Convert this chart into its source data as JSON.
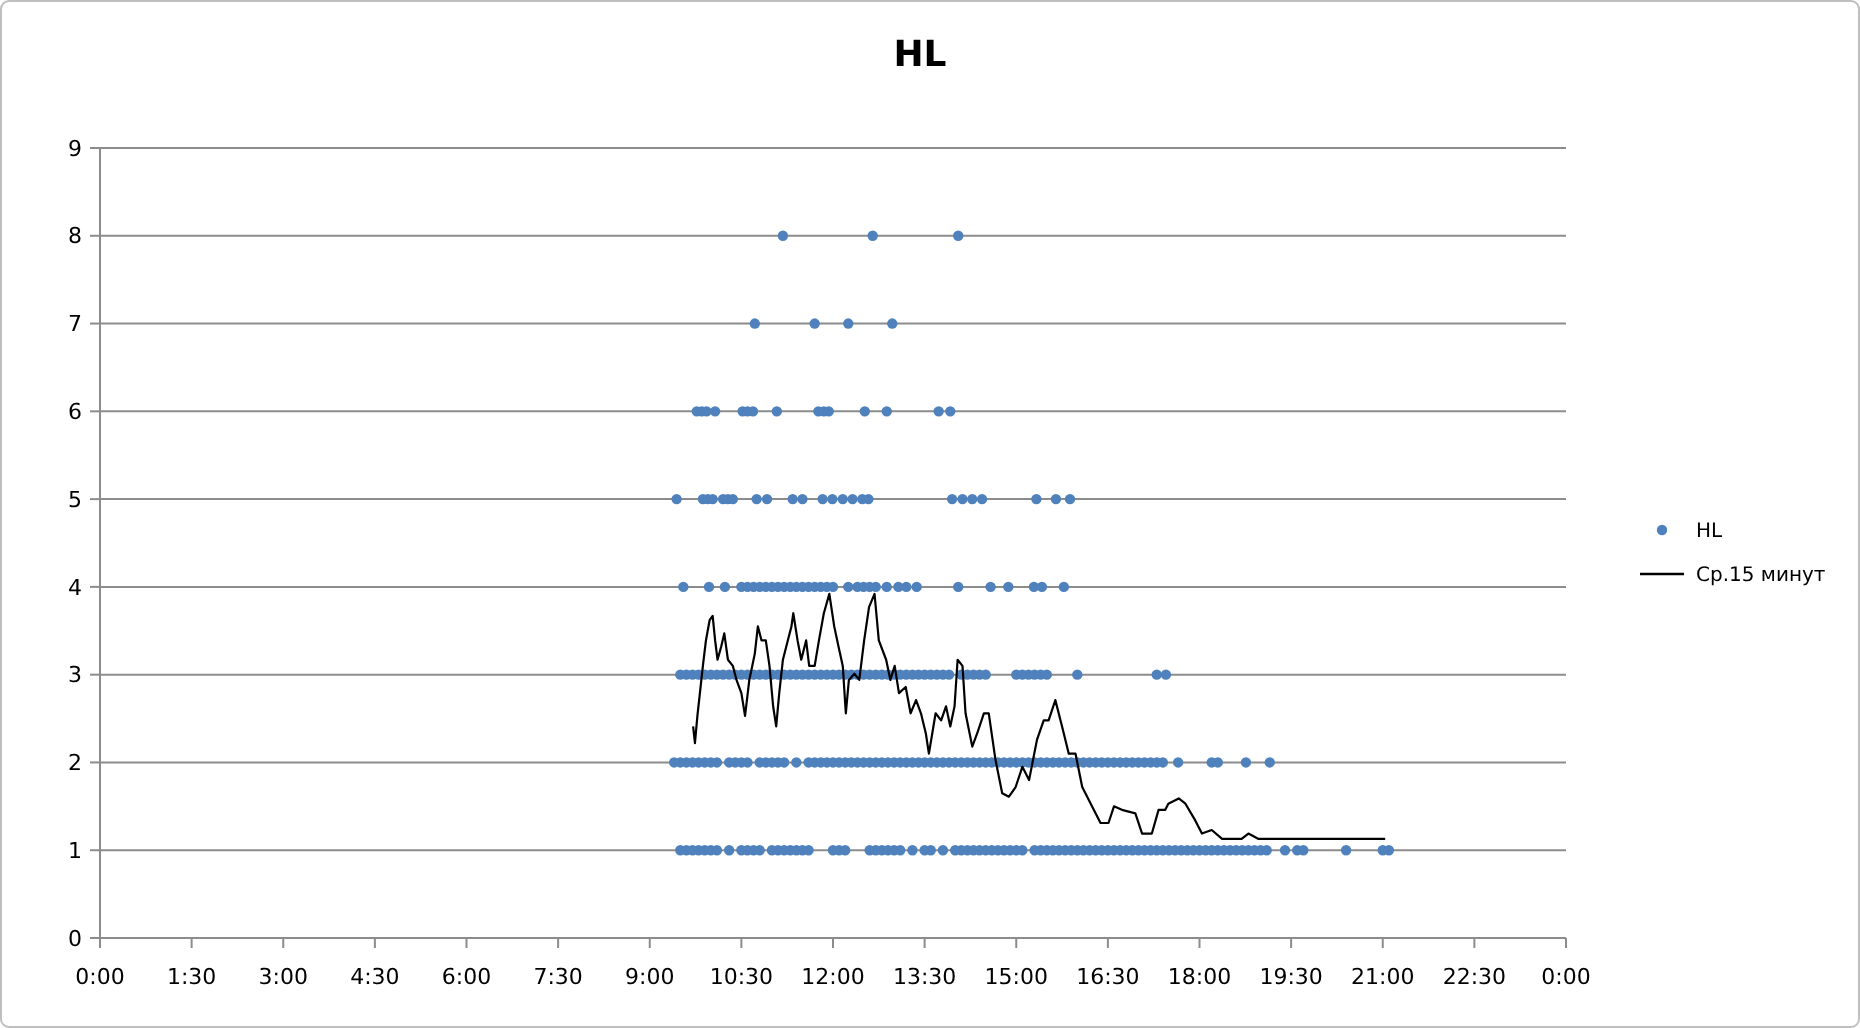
{
  "chart_data": {
    "type": "scatter",
    "title": "HL",
    "xlim": [
      0,
      24
    ],
    "xticks": [
      {
        "value": 0,
        "label": "0:00"
      },
      {
        "value": 1.5,
        "label": "1:30"
      },
      {
        "value": 3,
        "label": "3:00"
      },
      {
        "value": 4.5,
        "label": "4:30"
      },
      {
        "value": 6,
        "label": "6:00"
      },
      {
        "value": 7.5,
        "label": "7:30"
      },
      {
        "value": 9,
        "label": "9:00"
      },
      {
        "value": 10.5,
        "label": "10:30"
      },
      {
        "value": 12,
        "label": "12:00"
      },
      {
        "value": 13.5,
        "label": "13:30"
      },
      {
        "value": 15,
        "label": "15:00"
      },
      {
        "value": 16.5,
        "label": "16:30"
      },
      {
        "value": 18,
        "label": "18:00"
      },
      {
        "value": 19.5,
        "label": "19:30"
      },
      {
        "value": 21,
        "label": "21:00"
      },
      {
        "value": 22.5,
        "label": "22:30"
      },
      {
        "value": 24,
        "label": "0:00"
      }
    ],
    "ylim": [
      0,
      9
    ],
    "yticks": [
      0,
      1,
      2,
      3,
      4,
      5,
      6,
      7,
      8,
      9
    ],
    "grid": "y",
    "legend": "right",
    "series": [
      {
        "name": "HL",
        "marker": "circle",
        "color": "#4f81bd",
        "x": [
          11.18,
          12.65,
          14.05,
          10.72,
          11.7,
          12.25,
          12.97,
          9.77,
          9.85,
          9.93,
          10.07,
          10.52,
          10.6,
          10.69,
          11.08,
          11.76,
          11.85,
          11.93,
          12.52,
          12.88,
          13.73,
          13.92,
          9.44,
          9.87,
          9.95,
          10.03,
          10.2,
          10.28,
          10.36,
          10.75,
          10.92,
          11.34,
          11.5,
          11.83,
          11.99,
          12.16,
          12.32,
          12.48,
          12.58,
          13.95,
          14.12,
          14.28,
          14.44,
          15.33,
          15.65,
          15.88,
          9.55,
          9.97,
          10.23,
          10.5,
          10.6,
          10.7,
          10.8,
          10.9,
          11.0,
          11.1,
          11.2,
          11.3,
          11.4,
          11.5,
          11.6,
          11.7,
          11.8,
          11.9,
          12.0,
          12.25,
          12.4,
          12.5,
          12.6,
          12.7,
          12.88,
          13.07,
          13.2,
          13.37,
          14.05,
          14.58,
          14.87,
          15.29,
          15.42,
          15.78,
          9.5,
          9.6,
          9.7,
          9.8,
          9.9,
          10.0,
          10.1,
          10.2,
          10.3,
          10.4,
          10.5,
          10.6,
          10.7,
          10.8,
          10.9,
          11.0,
          11.1,
          11.2,
          11.3,
          11.4,
          11.5,
          11.6,
          11.7,
          11.8,
          11.9,
          12.0,
          12.1,
          12.2,
          12.3,
          12.4,
          12.5,
          12.6,
          12.7,
          12.8,
          12.9,
          13.0,
          13.1,
          13.2,
          13.3,
          13.4,
          13.5,
          13.6,
          13.7,
          13.8,
          13.9,
          14.1,
          14.2,
          14.3,
          14.4,
          14.5,
          15.0,
          15.1,
          15.2,
          15.3,
          15.4,
          15.5,
          16.0,
          17.3,
          17.45,
          9.5,
          9.6,
          9.7,
          9.8,
          9.9,
          10.0,
          10.1,
          10.3,
          10.4,
          10.5,
          10.6,
          10.8,
          10.9,
          11.0,
          11.1,
          11.2,
          11.4,
          11.6,
          11.7,
          11.8,
          11.9,
          12.0,
          12.1,
          12.2,
          12.3,
          12.4,
          12.5,
          12.6,
          12.7,
          12.8,
          12.9,
          13.0,
          13.1,
          13.2,
          13.3,
          13.4,
          13.5,
          13.6,
          13.7,
          13.8,
          13.9,
          14.0,
          14.1,
          14.2,
          14.3,
          14.4,
          14.5,
          14.6,
          14.7,
          14.8,
          14.9,
          15.0,
          15.1,
          15.2,
          15.3,
          15.4,
          15.5,
          15.6,
          15.7,
          15.8,
          15.9,
          16.0,
          16.1,
          16.2,
          16.3,
          16.4,
          16.5,
          16.6,
          16.7,
          16.8,
          16.9,
          17.0,
          17.1,
          17.2,
          17.3,
          17.4,
          17.65,
          18.2,
          18.3,
          18.76,
          19.15,
          9.4,
          9.5,
          9.6,
          9.7,
          9.8,
          9.9,
          10.0,
          10.1,
          10.3,
          10.5,
          10.6,
          10.7,
          10.8,
          11.0,
          11.1,
          11.2,
          11.3,
          11.4,
          11.5,
          11.6,
          12.0,
          12.1,
          12.2,
          12.6,
          12.7,
          12.8,
          12.9,
          13.0,
          13.1,
          13.3,
          13.5,
          13.6,
          13.8,
          14.0,
          14.1,
          14.2,
          14.3,
          14.4,
          14.5,
          14.6,
          14.7,
          14.8,
          14.9,
          15.0,
          15.1,
          15.3,
          15.4,
          15.5,
          15.6,
          15.7,
          15.8,
          15.9,
          16.0,
          16.1,
          16.2,
          16.3,
          16.4,
          16.5,
          16.6,
          16.7,
          16.8,
          16.9,
          17.0,
          17.1,
          17.2,
          17.3,
          17.4,
          17.5,
          17.6,
          17.7,
          17.8,
          17.9,
          18.0,
          18.1,
          18.2,
          18.3,
          18.4,
          18.5,
          18.6,
          18.7,
          18.8,
          18.9,
          19.0,
          19.1,
          19.4,
          19.6,
          19.7,
          20.4,
          21.0,
          21.1
        ],
        "values": [
          8,
          8,
          8,
          7,
          7,
          7,
          7,
          6,
          6,
          6,
          6,
          6,
          6,
          6,
          6,
          6,
          6,
          6,
          6,
          6,
          6,
          6,
          5,
          5,
          5,
          5,
          5,
          5,
          5,
          5,
          5,
          5,
          5,
          5,
          5,
          5,
          5,
          5,
          5,
          5,
          5,
          5,
          5,
          5,
          5,
          5,
          4,
          4,
          4,
          4,
          4,
          4,
          4,
          4,
          4,
          4,
          4,
          4,
          4,
          4,
          4,
          4,
          4,
          4,
          4,
          4,
          4,
          4,
          4,
          4,
          4,
          4,
          4,
          4,
          4,
          4,
          4,
          4,
          4,
          4,
          3,
          3,
          3,
          3,
          3,
          3,
          3,
          3,
          3,
          3,
          3,
          3,
          3,
          3,
          3,
          3,
          3,
          3,
          3,
          3,
          3,
          3,
          3,
          3,
          3,
          3,
          3,
          3,
          3,
          3,
          3,
          3,
          3,
          3,
          3,
          3,
          3,
          3,
          3,
          3,
          3,
          3,
          3,
          3,
          3,
          3,
          3,
          3,
          3,
          3,
          3,
          3,
          3,
          3,
          3,
          3,
          3,
          3,
          3,
          2,
          2,
          2,
          2,
          2,
          2,
          2,
          2,
          2,
          2,
          2,
          2,
          2,
          2,
          2,
          2,
          2,
          2,
          2,
          2,
          2,
          2,
          2,
          2,
          2,
          2,
          2,
          2,
          2,
          2,
          2,
          2,
          2,
          2,
          2,
          2,
          2,
          2,
          2,
          2,
          2,
          2,
          2,
          2,
          2,
          2,
          2,
          2,
          2,
          2,
          2,
          2,
          2,
          2,
          2,
          2,
          2,
          2,
          2,
          2,
          2,
          2,
          2,
          2,
          2,
          2,
          2,
          2,
          2,
          2,
          2,
          2,
          2,
          2,
          2,
          2,
          2,
          2,
          2,
          2,
          2,
          2,
          1,
          1,
          1,
          1,
          1,
          1,
          1,
          1,
          1,
          1,
          1,
          1,
          1,
          1,
          1,
          1,
          1,
          1,
          1,
          1,
          1,
          1,
          1,
          1,
          1,
          1,
          1,
          1,
          1,
          1,
          1,
          1,
          1,
          1,
          1,
          1,
          1,
          1,
          1,
          1,
          1,
          1,
          1,
          1,
          1,
          1,
          1,
          1,
          1,
          1,
          1,
          1,
          1,
          1,
          1,
          1,
          1,
          1,
          1,
          1,
          1,
          1,
          1,
          1,
          1,
          1,
          1,
          1,
          1,
          1,
          1,
          1,
          1,
          1,
          1,
          1,
          1,
          1,
          1,
          1,
          1,
          1,
          1,
          1,
          1,
          1,
          1,
          1,
          1
        ]
      },
      {
        "name": "Ср.15 минут",
        "type": "line",
        "marker": "none",
        "line_style": "solid",
        "color": "#000000",
        "x": [
          9.71,
          9.74,
          9.78,
          9.87,
          9.92,
          9.98,
          10.03,
          10.07,
          10.11,
          10.17,
          10.22,
          10.28,
          10.36,
          10.42,
          10.5,
          10.56,
          10.63,
          10.72,
          10.77,
          10.83,
          10.9,
          10.96,
          11.02,
          11.07,
          11.12,
          11.18,
          11.26,
          11.32,
          11.35,
          11.42,
          11.48,
          11.56,
          11.61,
          11.7,
          11.77,
          11.85,
          11.94,
          12.02,
          12.09,
          12.16,
          12.21,
          12.26,
          12.35,
          12.43,
          12.51,
          12.59,
          12.68,
          12.75,
          12.87,
          12.94,
          13.01,
          13.08,
          13.19,
          13.27,
          13.36,
          13.44,
          13.52,
          13.57,
          13.68,
          13.77,
          13.85,
          13.92,
          13.99,
          14.04,
          14.12,
          14.17,
          14.28,
          14.36,
          14.47,
          14.55,
          14.66,
          14.77,
          14.88,
          14.99,
          15.1,
          15.21,
          15.34,
          15.45,
          15.53,
          15.64,
          15.75,
          15.86,
          15.97,
          16.08,
          16.24,
          16.38,
          16.51,
          16.6,
          16.73,
          16.95,
          17.06,
          17.22,
          17.33,
          17.44,
          17.49,
          17.66,
          17.77,
          17.93,
          18.04,
          18.2,
          18.37,
          18.69,
          18.8,
          18.96,
          21.04
        ],
        "values": [
          2.41,
          2.22,
          2.53,
          3.1,
          3.39,
          3.62,
          3.67,
          3.39,
          3.17,
          3.32,
          3.47,
          3.17,
          3.1,
          2.94,
          2.79,
          2.53,
          2.94,
          3.24,
          3.55,
          3.39,
          3.39,
          3.1,
          2.64,
          2.41,
          2.79,
          3.17,
          3.39,
          3.55,
          3.7,
          3.39,
          3.17,
          3.39,
          3.1,
          3.1,
          3.39,
          3.7,
          3.92,
          3.55,
          3.32,
          3.1,
          2.56,
          2.94,
          3.01,
          2.94,
          3.39,
          3.77,
          3.92,
          3.39,
          3.17,
          2.94,
          3.1,
          2.79,
          2.86,
          2.56,
          2.71,
          2.56,
          2.33,
          2.1,
          2.56,
          2.48,
          2.64,
          2.41,
          2.64,
          3.17,
          3.1,
          2.56,
          2.18,
          2.33,
          2.56,
          2.56,
          2.03,
          1.65,
          1.61,
          1.72,
          1.95,
          1.8,
          2.26,
          2.48,
          2.48,
          2.71,
          2.41,
          2.1,
          2.1,
          1.72,
          1.5,
          1.31,
          1.31,
          1.5,
          1.46,
          1.42,
          1.19,
          1.19,
          1.46,
          1.46,
          1.53,
          1.59,
          1.53,
          1.34,
          1.19,
          1.23,
          1.13,
          1.13,
          1.19,
          1.13,
          1.13
        ]
      }
    ]
  }
}
